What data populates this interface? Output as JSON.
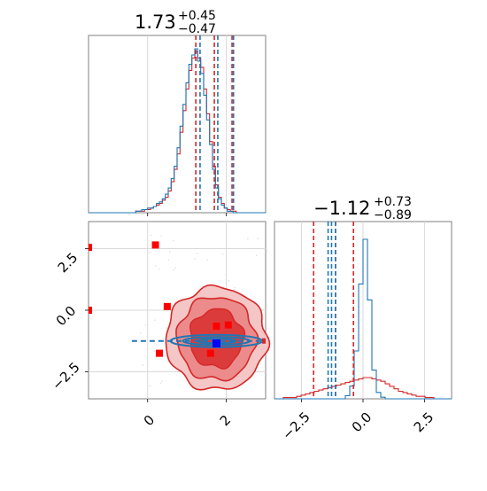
{
  "chart_data": [
    {
      "type": "histogram",
      "panel": "top-left",
      "title_main": "1.73",
      "title_plus": "+0.45",
      "title_minus": "−0.47",
      "xlim": [
        -1.5,
        3.0
      ],
      "quantile_lines_red": [
        1.26,
        1.73,
        2.18
      ],
      "quantile_lines_blue": [
        1.3,
        1.75,
        2.15
      ],
      "series": [
        {
          "name": "",
          "color": "#d62728",
          "bins": [
            -1.5,
            3.0
          ],
          "counts": [
            0,
            0,
            0,
            0,
            0,
            0,
            0,
            0,
            0,
            0,
            0,
            0,
            0,
            0,
            0,
            0,
            1,
            1,
            1,
            2,
            2,
            3,
            4,
            5,
            6,
            8,
            10,
            14,
            20,
            28,
            38,
            52,
            66,
            80,
            92,
            100,
            104,
            100,
            94,
            80,
            64,
            46,
            30,
            18,
            10,
            6,
            3,
            2,
            1,
            1,
            0,
            0,
            0,
            0,
            0,
            0,
            0,
            0,
            0,
            0
          ]
        },
        {
          "name": "",
          "color": "#1f77b4",
          "bins": [
            -1.5,
            3.0
          ],
          "counts": [
            0,
            0,
            0,
            0,
            0,
            0,
            0,
            0,
            0,
            0,
            0,
            0,
            0,
            0,
            0,
            0,
            1,
            1,
            2,
            2,
            3,
            3,
            4,
            6,
            7,
            9,
            12,
            16,
            22,
            30,
            42,
            56,
            70,
            84,
            96,
            102,
            106,
            98,
            90,
            76,
            60,
            44,
            28,
            16,
            9,
            5,
            3,
            1,
            1,
            0,
            0,
            0,
            0,
            0,
            0,
            0,
            0,
            0,
            0,
            0
          ]
        }
      ]
    },
    {
      "type": "contour-scatter",
      "panel": "bottom-left",
      "xlim": [
        -1.5,
        3.0
      ],
      "ylim": [
        -3.6,
        3.6
      ],
      "xticks": [
        "0",
        "2"
      ],
      "yticks": [
        "2.5",
        "0.0",
        "−2.5"
      ],
      "red_contour_center": [
        1.75,
        -1.15
      ],
      "blue_contour_center": [
        1.75,
        -1.25
      ],
      "red_points": [
        [
          -1.5,
          2.55
        ],
        [
          0.2,
          2.65
        ],
        [
          -1.5,
          0.0
        ],
        [
          0.5,
          0.15
        ],
        [
          0.3,
          -1.75
        ],
        [
          1.75,
          -0.65
        ],
        [
          2.05,
          -0.6
        ],
        [
          1.6,
          -1.75
        ]
      ],
      "blue_point": [
        1.75,
        -1.35
      ]
    },
    {
      "type": "histogram",
      "panel": "bottom-right",
      "title_main": "−1.12",
      "title_plus": "+0.73",
      "title_minus": "−0.89",
      "xlim": [
        -3.6,
        3.6
      ],
      "xticks": [
        "−2.5",
        "0.0",
        "2.5"
      ],
      "quantile_lines_red": [
        -2.01,
        -1.12,
        -0.39
      ],
      "quantile_lines_blue": [
        -1.42,
        -1.28,
        -1.12
      ],
      "series": [
        {
          "name": "",
          "color": "#d62728",
          "counts": [
            0,
            0,
            1,
            1,
            1,
            2,
            3,
            4,
            5,
            6,
            7,
            8,
            9,
            10,
            11,
            12,
            13,
            14,
            15,
            16,
            17,
            17,
            16,
            15,
            14,
            12,
            10,
            8,
            6,
            5,
            4,
            3,
            2,
            2,
            1,
            1,
            0,
            0,
            0,
            0
          ]
        },
        {
          "name": "",
          "color": "#1f77b4",
          "counts": [
            0,
            0,
            0,
            0,
            0,
            0,
            0,
            0,
            0,
            0,
            0,
            0,
            0,
            0,
            0,
            0,
            2,
            8,
            30,
            72,
            100,
            62,
            18,
            4,
            1,
            0,
            0,
            0,
            0,
            0,
            0,
            0,
            0,
            0,
            0,
            0,
            0,
            0,
            0,
            0
          ]
        }
      ]
    }
  ]
}
